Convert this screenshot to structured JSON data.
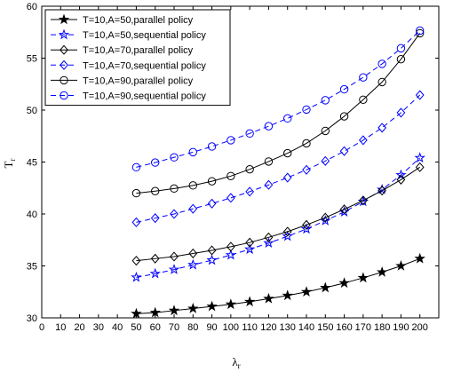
{
  "chart_data": {
    "type": "line",
    "xlabel": "λ",
    "xlabel_sub": "r",
    "ylabel": "T",
    "ylabel_sub": "r",
    "xlim": [
      0,
      210
    ],
    "ylim": [
      30,
      60
    ],
    "xticks": [
      0,
      10,
      20,
      30,
      40,
      50,
      60,
      70,
      80,
      90,
      100,
      110,
      120,
      130,
      140,
      150,
      160,
      170,
      180,
      190,
      200
    ],
    "yticks": [
      30,
      35,
      40,
      45,
      50,
      55,
      60
    ],
    "grid": false,
    "legend_position": "top-left",
    "x": [
      50,
      60,
      70,
      80,
      90,
      100,
      110,
      120,
      130,
      140,
      150,
      160,
      170,
      180,
      190,
      200
    ],
    "series": [
      {
        "name": "T=10,A=50,parallel policy",
        "color": "#000000",
        "dash": "solid",
        "marker": "star",
        "values": [
          30.4,
          30.5,
          30.7,
          30.9,
          31.1,
          31.3,
          31.55,
          31.85,
          32.15,
          32.5,
          32.9,
          33.35,
          33.85,
          34.4,
          35.0,
          35.7
        ]
      },
      {
        "name": "T=10,A=50,sequential policy",
        "color": "#0000ff",
        "dash": "dashed",
        "marker": "star",
        "values": [
          33.9,
          34.25,
          34.65,
          35.1,
          35.55,
          36.05,
          36.6,
          37.2,
          37.85,
          38.55,
          39.35,
          40.2,
          41.2,
          42.35,
          43.75,
          45.4
        ]
      },
      {
        "name": "T=10,A=70,parallel policy",
        "color": "#000000",
        "dash": "solid",
        "marker": "diamond",
        "values": [
          35.5,
          35.7,
          35.9,
          36.2,
          36.5,
          36.85,
          37.25,
          37.75,
          38.3,
          38.95,
          39.65,
          40.45,
          41.3,
          42.25,
          43.3,
          44.5
        ]
      },
      {
        "name": "T=10,A=70,sequential policy",
        "color": "#0000ff",
        "dash": "dashed",
        "marker": "diamond",
        "values": [
          39.2,
          39.6,
          40.0,
          40.5,
          41.0,
          41.55,
          42.15,
          42.8,
          43.5,
          44.25,
          45.1,
          46.05,
          47.1,
          48.3,
          49.75,
          51.45
        ]
      },
      {
        "name": "T=10,A=90,parallel policy",
        "color": "#000000",
        "dash": "solid",
        "marker": "circle",
        "values": [
          42.0,
          42.2,
          42.45,
          42.75,
          43.15,
          43.65,
          44.3,
          45.05,
          45.85,
          46.8,
          48.0,
          49.4,
          51.0,
          52.7,
          54.9,
          57.4
        ]
      },
      {
        "name": "T=10,A=90,sequential policy",
        "color": "#0000ff",
        "dash": "dashed",
        "marker": "circle",
        "values": [
          44.5,
          44.95,
          45.45,
          45.95,
          46.5,
          47.1,
          47.75,
          48.45,
          49.2,
          50.05,
          50.95,
          52.0,
          53.15,
          54.45,
          55.95,
          57.65
        ]
      }
    ]
  }
}
